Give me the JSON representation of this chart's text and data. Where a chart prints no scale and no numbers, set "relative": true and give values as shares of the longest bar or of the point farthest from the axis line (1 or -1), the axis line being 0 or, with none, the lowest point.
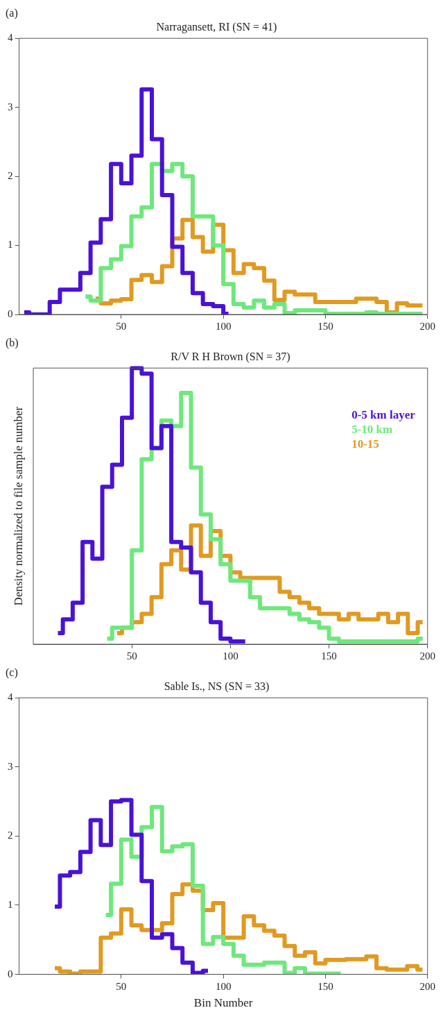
{
  "chart_data": [
    {
      "type": "step",
      "title": "Narragansett, RI (SN = 41)",
      "annotations": [
        "(a)"
      ],
      "xlim": [
        0,
        200
      ],
      "xticks": [
        50,
        100,
        150,
        200
      ],
      "ylim": [
        0,
        4
      ],
      "yticks": [
        0,
        1,
        2,
        3,
        4
      ],
      "series": [
        {
          "color": "#4a12d6",
          "x": [
            2.5,
            7.5,
            12.5,
            17.5,
            22.5,
            27.5,
            32.5,
            37.5,
            42.5,
            47.5,
            52.5,
            57.5,
            62.5,
            67.5,
            72.5,
            77.5,
            82.5,
            87.5,
            92.5,
            97.5,
            102.5
          ],
          "values": [
            0.03,
            0,
            0,
            0.18,
            0.36,
            0.36,
            0.6,
            1.04,
            1.38,
            2.18,
            1.9,
            2.3,
            3.26,
            2.54,
            1.73,
            0.98,
            0.6,
            0.31,
            0.15,
            0.12,
            0.01
          ]
        },
        {
          "color": "#6ee87c",
          "x": [
            32.5,
            37.5,
            42.5,
            47.5,
            52.5,
            57.5,
            62.5,
            67.5,
            72.5,
            77.5,
            82.5,
            87.5,
            92.5,
            97.5,
            102.5,
            107.5,
            112.5,
            117.5,
            122.5,
            127.5,
            132.5,
            137.5,
            142.5,
            147.5,
            152.5,
            157.5,
            162.5,
            167.5,
            172.5,
            177.5,
            182.5,
            187.5,
            192.5,
            197.5
          ],
          "values": [
            0.26,
            0.2,
            0.67,
            0.8,
            0.99,
            1.42,
            1.55,
            2.18,
            2.08,
            2.18,
            2.0,
            1.42,
            1.42,
            1.0,
            0.44,
            0.15,
            0.1,
            0.2,
            0.1,
            0.15,
            0.02,
            0.06,
            0.06,
            0.06,
            0.01,
            0.01,
            0.01,
            0.01,
            0.03,
            0.01,
            0.01,
            0.01,
            0.01,
            0.01
          ]
        },
        {
          "color": "#e09a22",
          "x": [
            37.5,
            42.5,
            47.5,
            52.5,
            57.5,
            62.5,
            67.5,
            72.5,
            77.5,
            82.5,
            87.5,
            92.5,
            97.5,
            102.5,
            107.5,
            112.5,
            117.5,
            122.5,
            127.5,
            132.5,
            137.5,
            142.5,
            147.5,
            152.5,
            157.5,
            162.5,
            167.5,
            172.5,
            177.5,
            182.5,
            187.5,
            192.5,
            197.5
          ],
          "values": [
            0.23,
            0.16,
            0.2,
            0.22,
            0.5,
            0.57,
            0.47,
            0.7,
            1.1,
            1.37,
            1.12,
            0.91,
            1.3,
            0.93,
            0.6,
            0.73,
            0.67,
            0.49,
            0.21,
            0.33,
            0.29,
            0.29,
            0.18,
            0.18,
            0.18,
            0.18,
            0.23,
            0.23,
            0.18,
            0.03,
            0.16,
            0.13,
            0.13
          ]
        }
      ]
    },
    {
      "type": "step",
      "title": "R/V R H Brown (SN = 37)",
      "annotations": [
        "(b)"
      ],
      "ylabel": "Density normalized to file sample number",
      "relative": true,
      "legend": "top right",
      "tick_labels": "x",
      "xlim": [
        0,
        200
      ],
      "xticks": [
        50,
        100,
        150,
        200
      ],
      "series": [
        {
          "name": "0-5 km layer",
          "color": "#4a12d6",
          "x": [
            12.5,
            17.5,
            22.5,
            27.5,
            32.5,
            37.5,
            42.5,
            47.5,
            52.5,
            57.5,
            62.5,
            67.5,
            72.5,
            77.5,
            82.5,
            87.5,
            92.5,
            97.5,
            102.5,
            107.5
          ],
          "values": [
            0.04,
            0.09,
            0.15,
            0.37,
            0.31,
            0.57,
            0.65,
            0.82,
            1,
            0.98,
            0.71,
            0.79,
            0.37,
            0.35,
            0.26,
            0.15,
            0.08,
            0.02,
            0.01,
            0.01
          ]
        },
        {
          "name": "5-10 km",
          "color": "#6ee87c",
          "x": [
            37.5,
            42.5,
            47.5,
            52.5,
            57.5,
            62.5,
            67.5,
            72.5,
            77.5,
            82.5,
            87.5,
            92.5,
            97.5,
            102.5,
            107.5,
            112.5,
            117.5,
            122.5,
            127.5,
            132.5,
            137.5,
            142.5,
            147.5,
            152.5,
            157.5,
            162.5,
            167.5,
            172.5,
            177.5,
            182.5,
            187.5,
            192.5,
            197.5
          ],
          "values": [
            0.02,
            0.06,
            0.06,
            0.34,
            0.67,
            0.71,
            0.81,
            0.79,
            0.91,
            0.64,
            0.47,
            0.38,
            0.29,
            0.23,
            0.23,
            0.17,
            0.13,
            0.13,
            0.13,
            0.11,
            0.09,
            0.08,
            0.06,
            0.02,
            0.01,
            0.01,
            0.01,
            0.01,
            0.01,
            0.01,
            0.01,
            0.01,
            0.02
          ]
        },
        {
          "name": "10-15",
          "color": "#e09a22",
          "x": [
            42.5,
            47.5,
            52.5,
            57.5,
            62.5,
            67.5,
            72.5,
            77.5,
            82.5,
            87.5,
            92.5,
            97.5,
            102.5,
            107.5,
            112.5,
            117.5,
            122.5,
            127.5,
            132.5,
            137.5,
            142.5,
            147.5,
            152.5,
            157.5,
            162.5,
            167.5,
            172.5,
            177.5,
            182.5,
            187.5,
            192.5,
            197.5
          ],
          "values": [
            0.04,
            0.06,
            0.08,
            0.11,
            0.17,
            0.29,
            0.34,
            0.27,
            0.43,
            0.32,
            0.41,
            0.32,
            0.26,
            0.24,
            0.24,
            0.24,
            0.24,
            0.19,
            0.17,
            0.15,
            0.13,
            0.11,
            0.11,
            0.09,
            0.11,
            0.09,
            0.09,
            0.11,
            0.08,
            0.11,
            0.04,
            0.08
          ]
        }
      ]
    },
    {
      "type": "step",
      "title": "Sable Is., NS (SN = 33)",
      "annotations": [
        "(c)"
      ],
      "xlabel": "Bin Number",
      "xlim": [
        0,
        200
      ],
      "xticks": [
        50,
        100,
        150,
        200
      ],
      "ylim": [
        0,
        4
      ],
      "yticks": [
        0,
        1,
        2,
        3,
        4
      ],
      "series": [
        {
          "color": "#4a12d6",
          "x": [
            17.5,
            22.5,
            27.5,
            32.5,
            37.5,
            42.5,
            47.5,
            52.5,
            57.5,
            62.5,
            67.5,
            72.5,
            77.5,
            82.5,
            87.5,
            92.5
          ],
          "values": [
            0.98,
            1.43,
            1.48,
            1.77,
            2.23,
            1.87,
            2.5,
            2.52,
            2.02,
            1.35,
            0.53,
            0.58,
            0.38,
            0.17,
            0.02,
            0.05
          ]
        },
        {
          "color": "#6ee87c",
          "x": [
            42.5,
            47.5,
            52.5,
            57.5,
            62.5,
            67.5,
            72.5,
            77.5,
            82.5,
            87.5,
            92.5,
            97.5,
            102.5,
            107.5,
            112.5,
            117.5,
            122.5,
            127.5,
            132.5,
            137.5,
            142.5,
            147.5,
            152.5,
            157.5
          ],
          "values": [
            0.86,
            1.31,
            1.95,
            1.7,
            2.13,
            2.42,
            1.78,
            1.85,
            1.88,
            1.28,
            0.44,
            0.54,
            0.44,
            0.27,
            0.14,
            0.14,
            0.17,
            0.17,
            0.02,
            0.09,
            0.01,
            0.01,
            0.01,
            0.01
          ]
        },
        {
          "color": "#e09a22",
          "x": [
            17.5,
            22.5,
            27.5,
            32.5,
            37.5,
            42.5,
            47.5,
            52.5,
            57.5,
            62.5,
            67.5,
            72.5,
            77.5,
            82.5,
            87.5,
            92.5,
            97.5,
            102.5,
            107.5,
            112.5,
            117.5,
            122.5,
            127.5,
            132.5,
            137.5,
            142.5,
            147.5,
            152.5,
            157.5,
            162.5,
            167.5,
            172.5,
            177.5,
            182.5,
            187.5,
            192.5,
            197.5
          ],
          "values": [
            0.09,
            0.04,
            0.01,
            0.04,
            0.04,
            0.53,
            0.59,
            0.94,
            0.71,
            0.64,
            0.64,
            0.74,
            1.16,
            1.3,
            1.21,
            0.93,
            1.03,
            0.53,
            0.53,
            0.84,
            0.71,
            0.63,
            0.56,
            0.41,
            0.27,
            0.32,
            0.16,
            0.21,
            0.21,
            0.22,
            0.22,
            0.26,
            0.09,
            0.07,
            0.07,
            0.12,
            0.07
          ]
        }
      ]
    }
  ]
}
